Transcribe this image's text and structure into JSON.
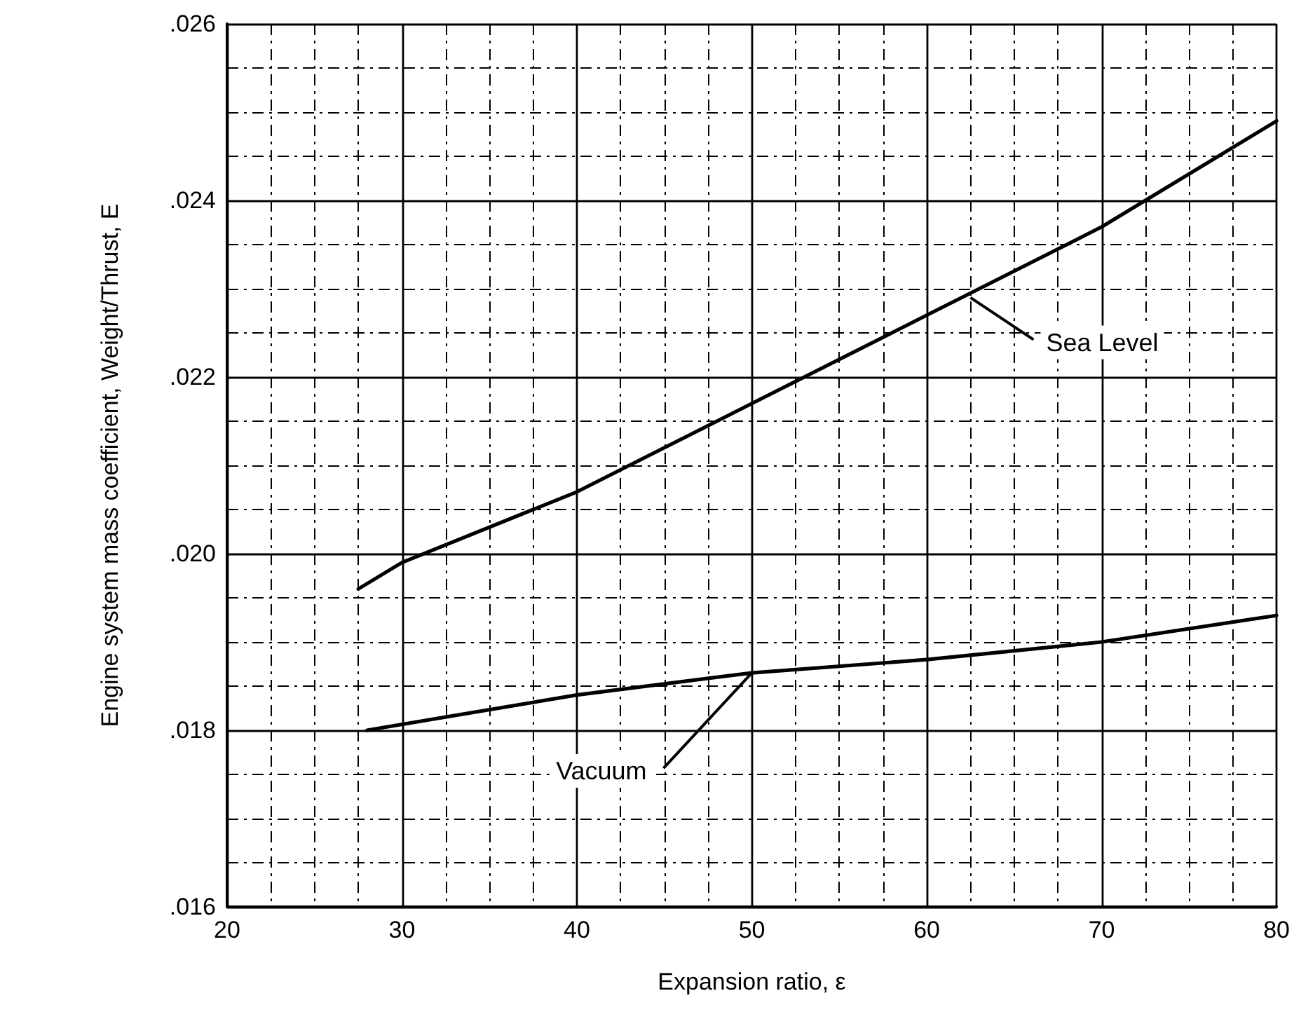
{
  "chart_data": {
    "type": "line",
    "xlabel": "Expansion ratio, ε",
    "ylabel": "Engine system mass coefficient, Weight/Thrust, E",
    "xlim": [
      20,
      80
    ],
    "xticks": [
      20,
      30,
      40,
      50,
      60,
      70,
      80
    ],
    "ylim": [
      0.016,
      0.026
    ],
    "yticks": [
      {
        "value": 0.016,
        "label": ".016"
      },
      {
        "value": 0.018,
        "label": ".018"
      },
      {
        "value": 0.02,
        "label": ".020"
      },
      {
        "value": 0.022,
        "label": ".022"
      },
      {
        "value": 0.024,
        "label": ".024"
      },
      {
        "value": 0.026,
        "label": ".026"
      }
    ],
    "grid": true,
    "marker": "none",
    "line_style": "solid",
    "series": [
      {
        "color": "#000000",
        "x": [
          27.5,
          30,
          40,
          50,
          60,
          70,
          80
        ],
        "values": [
          0.0196,
          0.0199,
          0.0207,
          0.0217,
          0.0227,
          0.0237,
          0.0249
        ]
      },
      {
        "color": "#000000",
        "x": [
          28,
          40,
          50,
          60,
          65,
          70,
          80
        ],
        "values": [
          0.018,
          0.0184,
          0.01865,
          0.0188,
          0.0189,
          0.019,
          0.0193
        ]
      }
    ],
    "annotations": [
      {
        "text": "Sea Level",
        "x": 62.5,
        "y": 0.0229
      },
      {
        "text": "Vacuum",
        "x": 50,
        "y": 0.01865
      }
    ]
  }
}
